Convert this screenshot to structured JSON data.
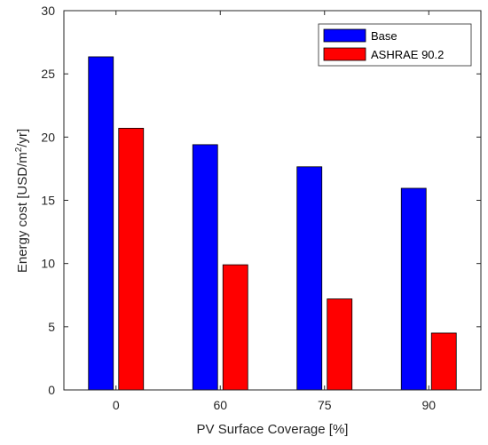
{
  "chart_data": {
    "type": "bar",
    "title": "",
    "xlabel": "PV Surface Coverage [%]",
    "ylabel": {
      "pre": "Energy cost [USD/m",
      "sup": "2",
      "post": "/yr]"
    },
    "categories": [
      "0",
      "60",
      "75",
      "90"
    ],
    "series": [
      {
        "name": "Base",
        "color": "#0000ff",
        "values": [
          26.35,
          19.4,
          17.65,
          15.95
        ]
      },
      {
        "name": "ASHRAE 90.2",
        "color": "#ff0000",
        "values": [
          20.7,
          9.9,
          7.2,
          4.5
        ]
      }
    ],
    "ylim": [
      0,
      30
    ],
    "yticks": [
      0,
      5,
      10,
      15,
      20,
      25,
      30
    ],
    "grid": false,
    "legend_position": "top-right"
  }
}
